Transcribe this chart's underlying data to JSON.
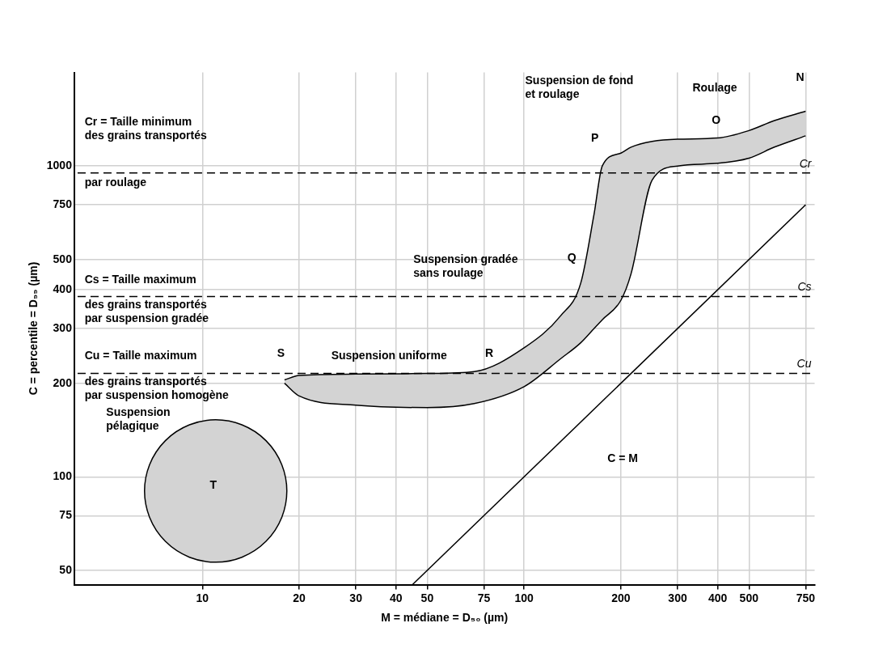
{
  "chart_data": {
    "type": "area",
    "xlabel": "M = médiane = D₅₀ (µm)",
    "ylabel": "C = percentile = D₉₉ (µm)",
    "log": "xy",
    "grid": true,
    "legend": false,
    "xlim": [
      4,
      800
    ],
    "ylim": [
      45,
      2000
    ],
    "xticks": [
      10,
      20,
      30,
      40,
      50,
      75,
      100,
      200,
      300,
      400,
      500,
      750
    ],
    "yticks": [
      50,
      75,
      100,
      200,
      300,
      400,
      500,
      750,
      1000
    ],
    "series": [
      {
        "type": "line",
        "color": "#000000",
        "x": [
          18,
          20,
          30,
          50,
          70,
          100,
          130,
          150,
          165,
          175,
          200,
          215,
          250,
          300,
          400,
          500,
          600,
          750
        ],
        "values": [
          200,
          182,
          170,
          167,
          172,
          195,
          240,
          270,
          300,
          320,
          370,
          450,
          900,
          1000,
          1020,
          1060,
          1150,
          1250
        ]
      },
      {
        "color": "#d3d3d3",
        "x": [
          18,
          20,
          30,
          50,
          70,
          100,
          130,
          150,
          165,
          175,
          200,
          215,
          250,
          300,
          400,
          500,
          600,
          750
        ],
        "values": [
          205,
          212,
          214,
          215,
          218,
          260,
          330,
          420,
          700,
          1000,
          1100,
          1150,
          1200,
          1220,
          1230,
          1300,
          1400,
          1500
        ]
      },
      {
        "type": "line",
        "color": "#000000",
        "x": [
          45,
          750
        ],
        "values": [
          45,
          750
        ]
      },
      {
        "type": "bubble",
        "color": "#d3d3d3",
        "x": [
          11
        ],
        "values": [
          90
        ],
        "sizes": [
          1
        ]
      }
    ],
    "ref_lines": [
      {
        "axis": "y",
        "value": 950,
        "label": "Cr",
        "line_style": "dashed"
      },
      {
        "axis": "y",
        "value": 380,
        "label": "Cs",
        "line_style": "dashed"
      },
      {
        "axis": "y",
        "value": 215,
        "label": "Cu",
        "line_style": "dashed"
      }
    ],
    "annotations": [
      "Cr = Taille minimum\ndes grains transportés",
      "par roulage",
      "Cs = Taille maximum",
      "des grains transportés\npar suspension gradée",
      "Cu = Taille maximum",
      "des grains transportés\npar suspension homogène",
      "Suspension\npélagique",
      "T",
      "S",
      "Suspension uniforme",
      "R",
      "Suspension gradée\nsans roulage",
      "Q",
      "P",
      "Suspension de fond\net roulage",
      "O",
      "Roulage",
      "N",
      "C = M"
    ]
  }
}
